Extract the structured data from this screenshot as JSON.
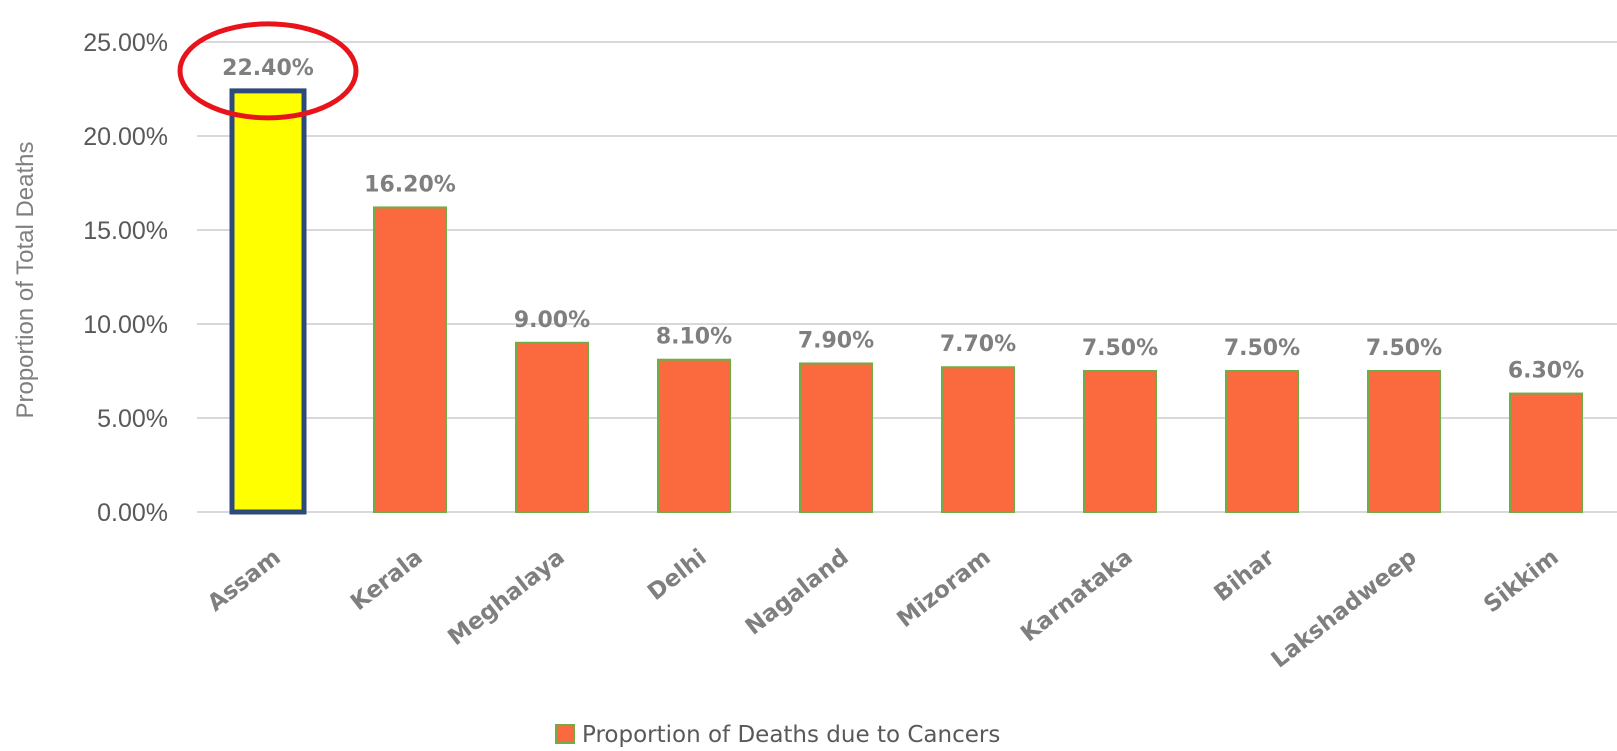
{
  "chart_data": {
    "type": "bar",
    "title": "",
    "xlabel": "",
    "ylabel": "Proportion of Total Deaths",
    "categories": [
      "Assam",
      "Kerala",
      "Meghalaya",
      "Delhi",
      "Nagaland",
      "Mizoram",
      "Karnataka",
      "Bihar",
      "Lakshadweep",
      "Sikkim"
    ],
    "series": [
      {
        "name": "Proportion of Deaths due to Cancers",
        "values": [
          22.4,
          16.2,
          9.0,
          8.1,
          7.9,
          7.7,
          7.5,
          7.5,
          7.5,
          6.3
        ],
        "labels": [
          "22.40%",
          "16.20%",
          "9.00%",
          "8.10%",
          "7.90%",
          "7.70%",
          "7.50%",
          "7.50%",
          "7.50%",
          "6.30%"
        ]
      }
    ],
    "ylim": [
      0,
      25
    ],
    "yticks": [
      0,
      5,
      10,
      15,
      20,
      25
    ],
    "ytick_labels": [
      "0.00%",
      "5.00%",
      "10.00%",
      "15.00%",
      "20.00%",
      "25.00%"
    ],
    "grid": true,
    "legend": "bottom-center",
    "highlight": {
      "category": "Assam",
      "fill": "#ffff00",
      "stroke": "#2e4a7d",
      "annotation": "red-circle-around-label"
    },
    "colors": {
      "bar": "#fb6a3f",
      "bar_border": "#70ad47",
      "circle": "#e8141b",
      "legend_swatch": "#fb6a3f"
    }
  }
}
